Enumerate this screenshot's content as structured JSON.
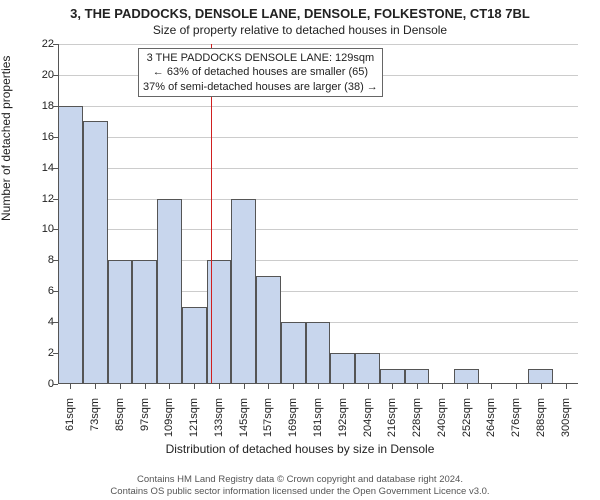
{
  "title_main": "3, THE PADDOCKS, DENSOLE LANE, DENSOLE, FOLKESTONE, CT18 7BL",
  "title_sub": "Size of property relative to detached houses in Densole",
  "ylabel": "Number of detached properties",
  "xlabel": "Distribution of detached houses by size in Densole",
  "footer1": "Contains HM Land Registry data © Crown copyright and database right 2024.",
  "footer2": "Contains OS public sector information licensed under the Open Government Licence v3.0.",
  "annotation": {
    "line1": "3 THE PADDOCKS DENSOLE LANE: 129sqm",
    "line2": "← 63% of detached houses are smaller (65)",
    "line3": "37% of semi-detached houses are larger (38) →",
    "ref_x_sqm": 129,
    "border_color": "#666666",
    "bg_color": "#ffffff"
  },
  "chart": {
    "type": "histogram",
    "x_start": 55,
    "x_end": 306,
    "bin_width_sqm": 12,
    "ylim": [
      0,
      22
    ],
    "ytick_step": 2,
    "xtick_labels": [
      "61sqm",
      "73sqm",
      "85sqm",
      "97sqm",
      "109sqm",
      "121sqm",
      "133sqm",
      "145sqm",
      "157sqm",
      "169sqm",
      "181sqm",
      "192sqm",
      "204sqm",
      "216sqm",
      "228sqm",
      "240sqm",
      "252sqm",
      "264sqm",
      "276sqm",
      "288sqm",
      "300sqm"
    ],
    "values": [
      18,
      17,
      8,
      8,
      12,
      5,
      8,
      12,
      7,
      4,
      4,
      2,
      2,
      1,
      1,
      0,
      1,
      0,
      0,
      1,
      0
    ],
    "bar_fill": "#c8d6ed",
    "bar_border": "#555555",
    "grid_color": "#cccccc",
    "axis_color": "#555555",
    "refline_color": "#d02020",
    "bg_color": "#ffffff",
    "tick_fontsize": 11,
    "label_fontsize": 12,
    "title_fontsize": 13
  }
}
